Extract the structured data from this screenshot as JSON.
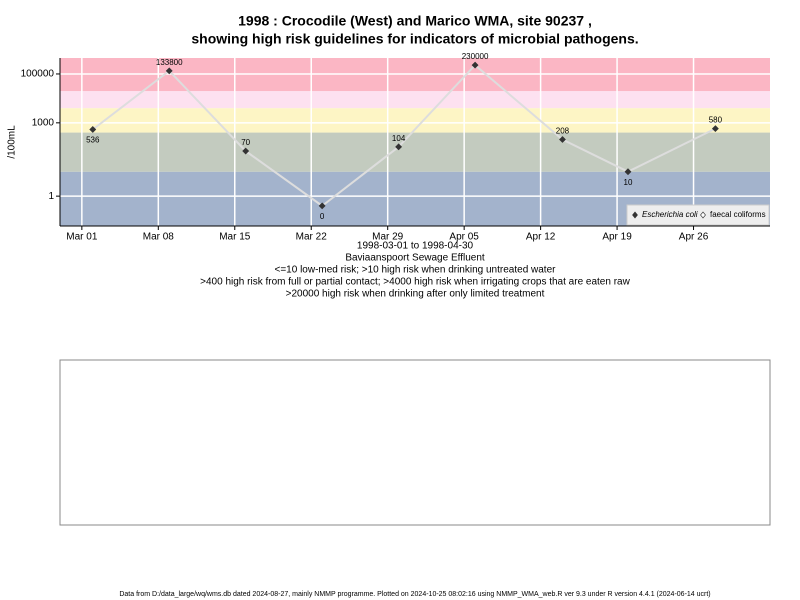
{
  "chart_data": {
    "type": "line",
    "title": "1998 : Crocodile (West) and Marico WMA, site 90237 ,",
    "title_line2": "showing high risk guidelines for indicators of microbial pathogens.",
    "y_label": "/100mL",
    "date_range": "1998-03-01 to 1998-04-30",
    "site_name": "Baviaanspoort Sewage Effluent",
    "notes": [
      "<=10 low-med risk; >10 high risk when drinking untreated water",
      ">400 high risk from full or partial contact; >4000 high risk when irrigating crops that are eaten raw",
      ">20000 high risk when drinking after only limited treatment"
    ],
    "footer": "Data from D:/data_large/wq/wms.db dated 2024-08-27, mainly NMMP programme. Plotted on 2024-10-25 08:02:16 using NMMP_WMA_web.R ver 9.3 under R version 4.4.1 (2024-06-14 ucrt)",
    "x": [
      "1998-03-02",
      "1998-03-09",
      "1998-03-16",
      "1998-03-23",
      "1998-03-30",
      "1998-04-06",
      "1998-04-14",
      "1998-04-20",
      "1998-04-28"
    ],
    "series": [
      {
        "name": "Escherichia coli",
        "color": "#333333",
        "line_color": "#dddddd",
        "values": [
          536,
          133800,
          70,
          0.4,
          104,
          230000,
          208,
          10,
          580
        ],
        "value_labels": [
          "536",
          "133800",
          "70",
          "0",
          "104",
          "230000",
          "208",
          "10",
          "580"
        ]
      },
      {
        "name": "faecal coliforms",
        "color": "#ffffff",
        "line_color": "#dddddd",
        "values": [
          null,
          null,
          null,
          null,
          null,
          null,
          null,
          null,
          null
        ]
      }
    ],
    "xlim": [
      "1998-02-27",
      "1998-05-03"
    ],
    "xticks": [
      {
        "value": "1998-03-01",
        "label": "Mar 01"
      },
      {
        "value": "1998-03-08",
        "label": "Mar 08"
      },
      {
        "value": "1998-03-15",
        "label": "Mar 15"
      },
      {
        "value": "1998-03-22",
        "label": "Mar 22"
      },
      {
        "value": "1998-03-29",
        "label": "Mar 29"
      },
      {
        "value": "1998-04-05",
        "label": "Apr 05"
      },
      {
        "value": "1998-04-12",
        "label": "Apr 12"
      },
      {
        "value": "1998-04-19",
        "label": "Apr 19"
      },
      {
        "value": "1998-04-26",
        "label": "Apr 26"
      }
    ],
    "ylim": [
      0.06,
      450000
    ],
    "yticks": [
      1,
      1000,
      100000
    ],
    "log_y": true,
    "grid": true,
    "legend": "bottom-right",
    "thresholds": [
      10,
      400,
      4000,
      20000
    ],
    "band_colors": [
      "#a3b3cc",
      "#c3cbbf",
      "#fdf5c5",
      "#fde1f0",
      "#fbb6c4"
    ]
  }
}
